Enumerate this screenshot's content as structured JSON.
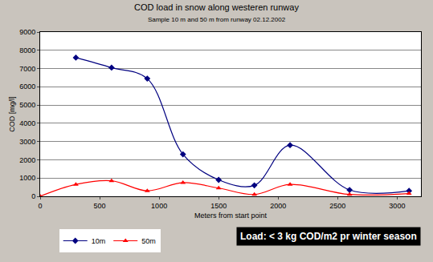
{
  "chart_data": {
    "type": "line",
    "title": "COD load in snow along westeren runway",
    "subtitle": "Sample 10 m and 50 m from runway 02.12.2002",
    "x_label": "Meters from start point",
    "y_label": "COD [mg/l]",
    "series": [
      {
        "name": "10m",
        "color": "#000080",
        "marker": "diamond",
        "line_style": "smooth",
        "x": [
          300,
          600,
          900,
          1200,
          1500,
          1800,
          2100,
          2600,
          3100
        ],
        "values": [
          7600,
          7050,
          6450,
          2300,
          900,
          600,
          2800,
          350,
          300
        ]
      },
      {
        "name": "50m",
        "color": "#ff0000",
        "marker": "triangle-up",
        "line_style": "smooth",
        "x": [
          0,
          300,
          600,
          900,
          1200,
          1500,
          1800,
          2100,
          2600,
          3100
        ],
        "values": [
          0,
          650,
          850,
          300,
          750,
          450,
          100,
          650,
          100,
          150
        ]
      }
    ],
    "xlim": [
      0,
      3200
    ],
    "xticks": [
      0,
      500,
      1000,
      1500,
      2000,
      2500,
      3000
    ],
    "ylim": [
      0,
      9000
    ],
    "yticks": [
      0,
      1000,
      2000,
      3000,
      4000,
      5000,
      6000,
      7000,
      8000,
      9000
    ],
    "grid": true,
    "legend": "bottom",
    "annotations": [
      "Load: < 3 kg COD/m2 pr winter season"
    ]
  }
}
